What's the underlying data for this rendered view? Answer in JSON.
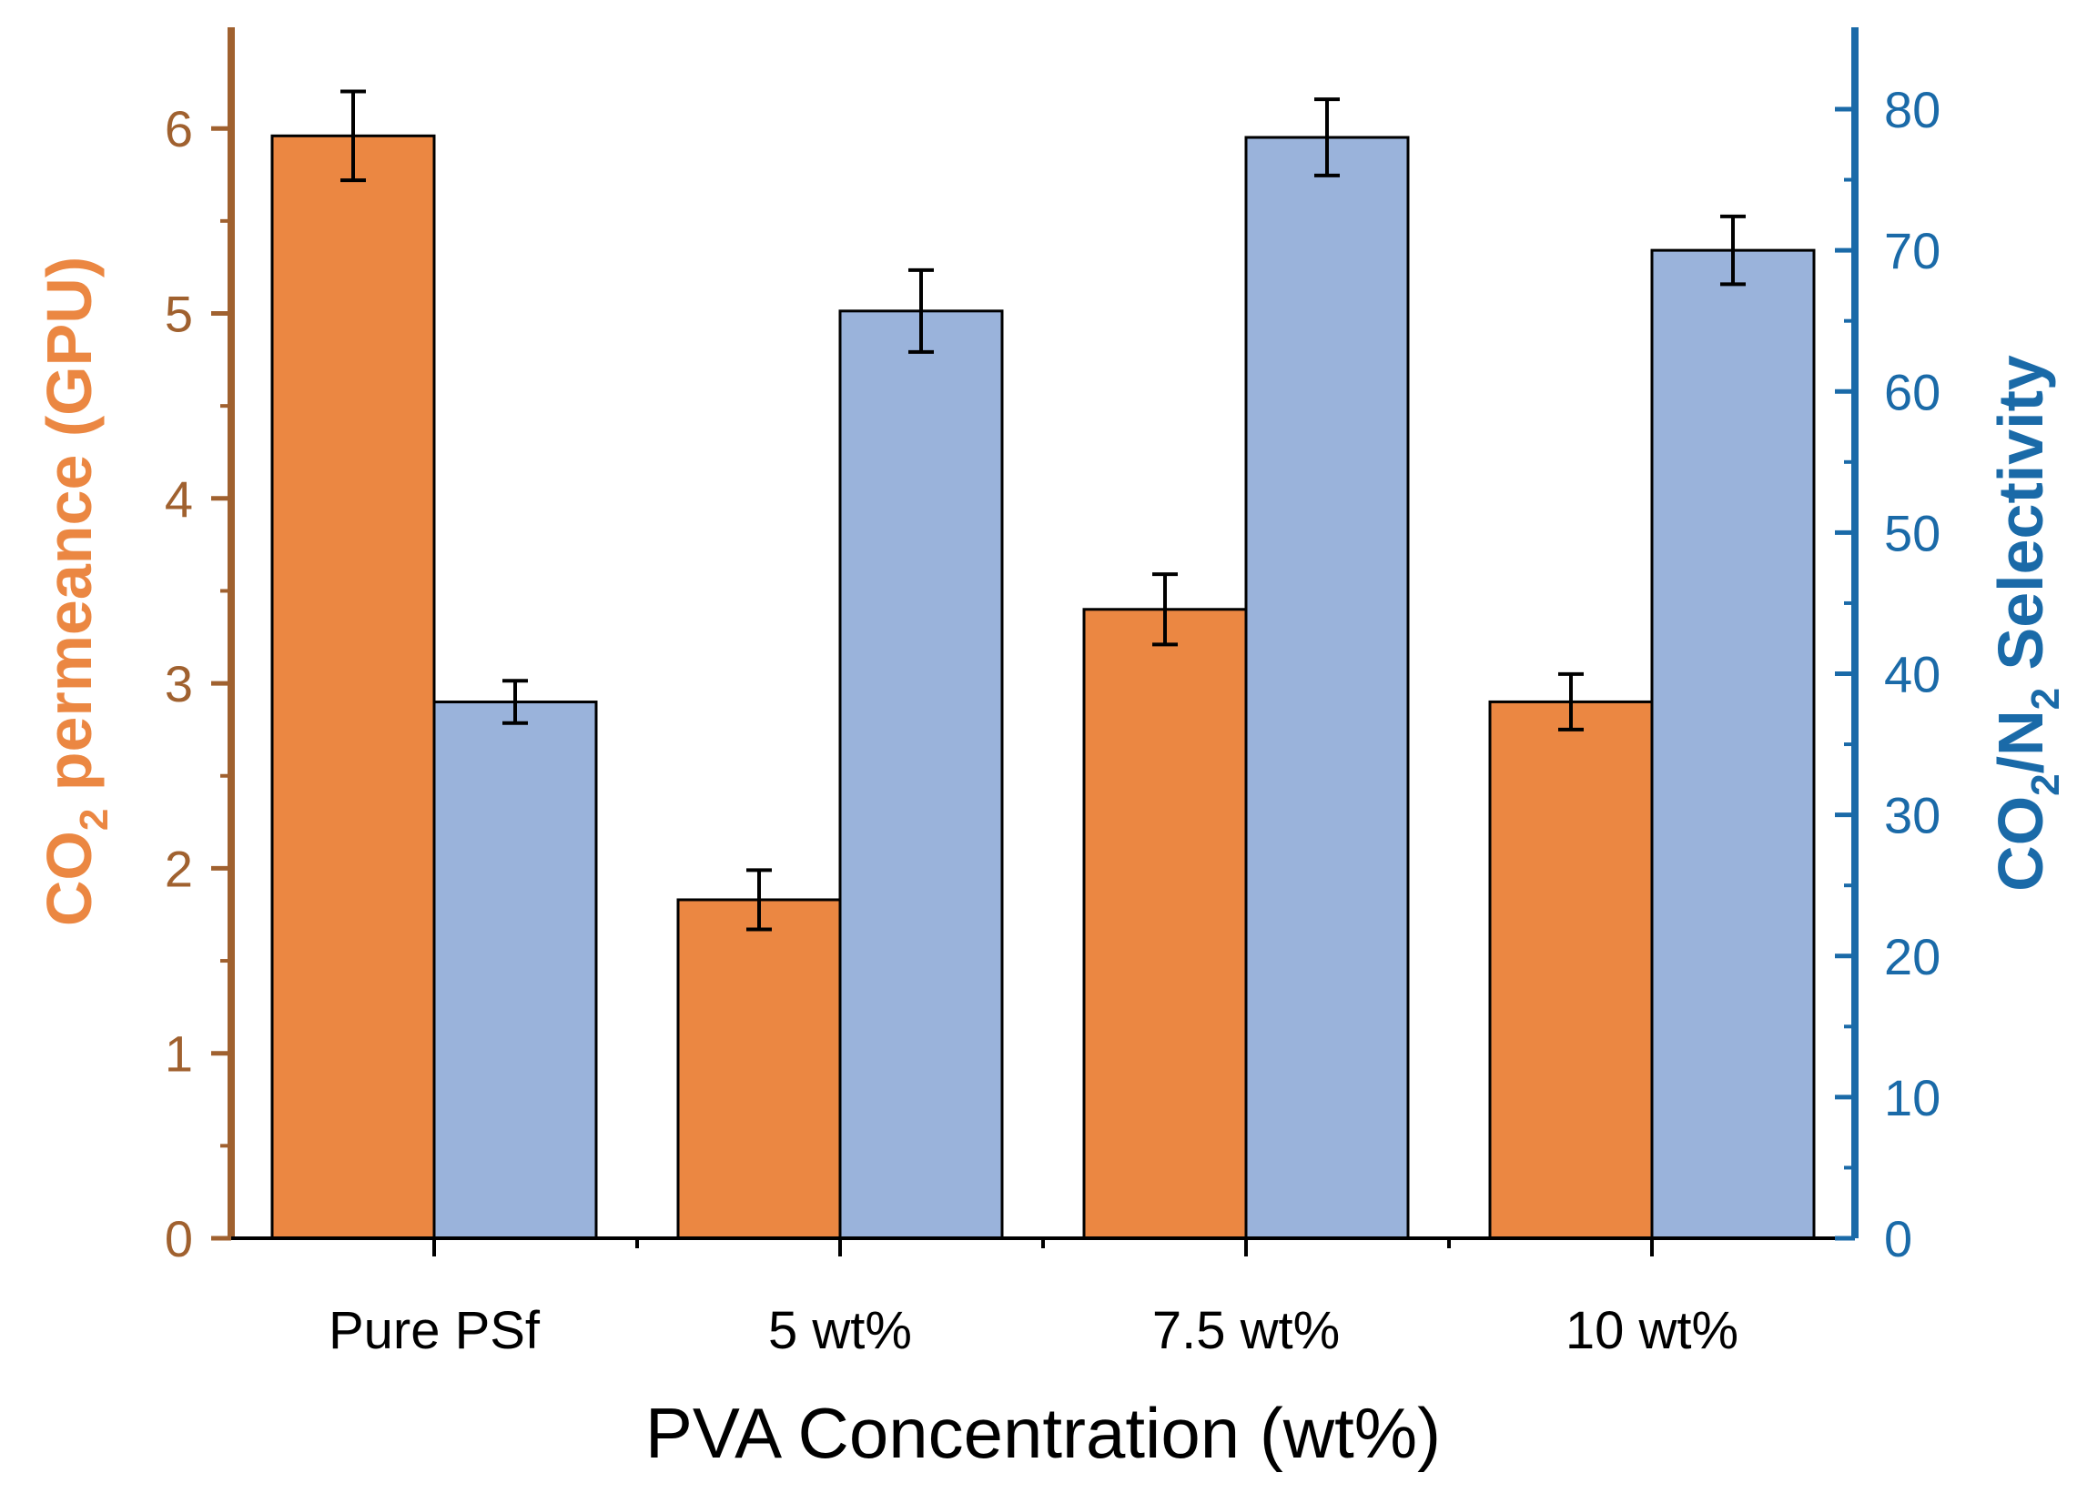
{
  "chart_data": {
    "type": "bar",
    "xlabel": "PVA Concentration (wt%)",
    "categories": [
      "Pure PSf",
      "5 wt%",
      "7.5 wt%",
      "10 wt%"
    ],
    "left_axis": {
      "label": {
        "main": "CO",
        "sub": "2",
        "rest": " permeance (GPU)"
      },
      "ylim": [
        0,
        6.5
      ],
      "ticks": [
        "0",
        "1",
        "2",
        "3",
        "4",
        "5",
        "6"
      ],
      "color": "#a0612f"
    },
    "right_axis": {
      "label": {
        "p1": "CO",
        "s1": "2",
        "p2": "/N",
        "s2": "2",
        "p3": " Selectivity"
      },
      "ylim": [
        0,
        84
      ],
      "ticks": [
        "0",
        "10",
        "20",
        "30",
        "40",
        "50",
        "60",
        "70",
        "80"
      ],
      "color": "#1a6aa8"
    },
    "series": [
      {
        "name": "CO2 permeance",
        "axis": "left",
        "color": "#eb8742",
        "values": [
          5.96,
          1.83,
          3.4,
          2.9
        ],
        "errors": [
          0.24,
          0.16,
          0.19,
          0.15
        ]
      },
      {
        "name": "CO2/N2 Selectivity",
        "axis": "right",
        "color": "#9ab3db",
        "values": [
          38,
          65.7,
          78,
          70
        ],
        "errors": [
          1.5,
          2.9,
          2.7,
          2.4
        ]
      }
    ]
  }
}
